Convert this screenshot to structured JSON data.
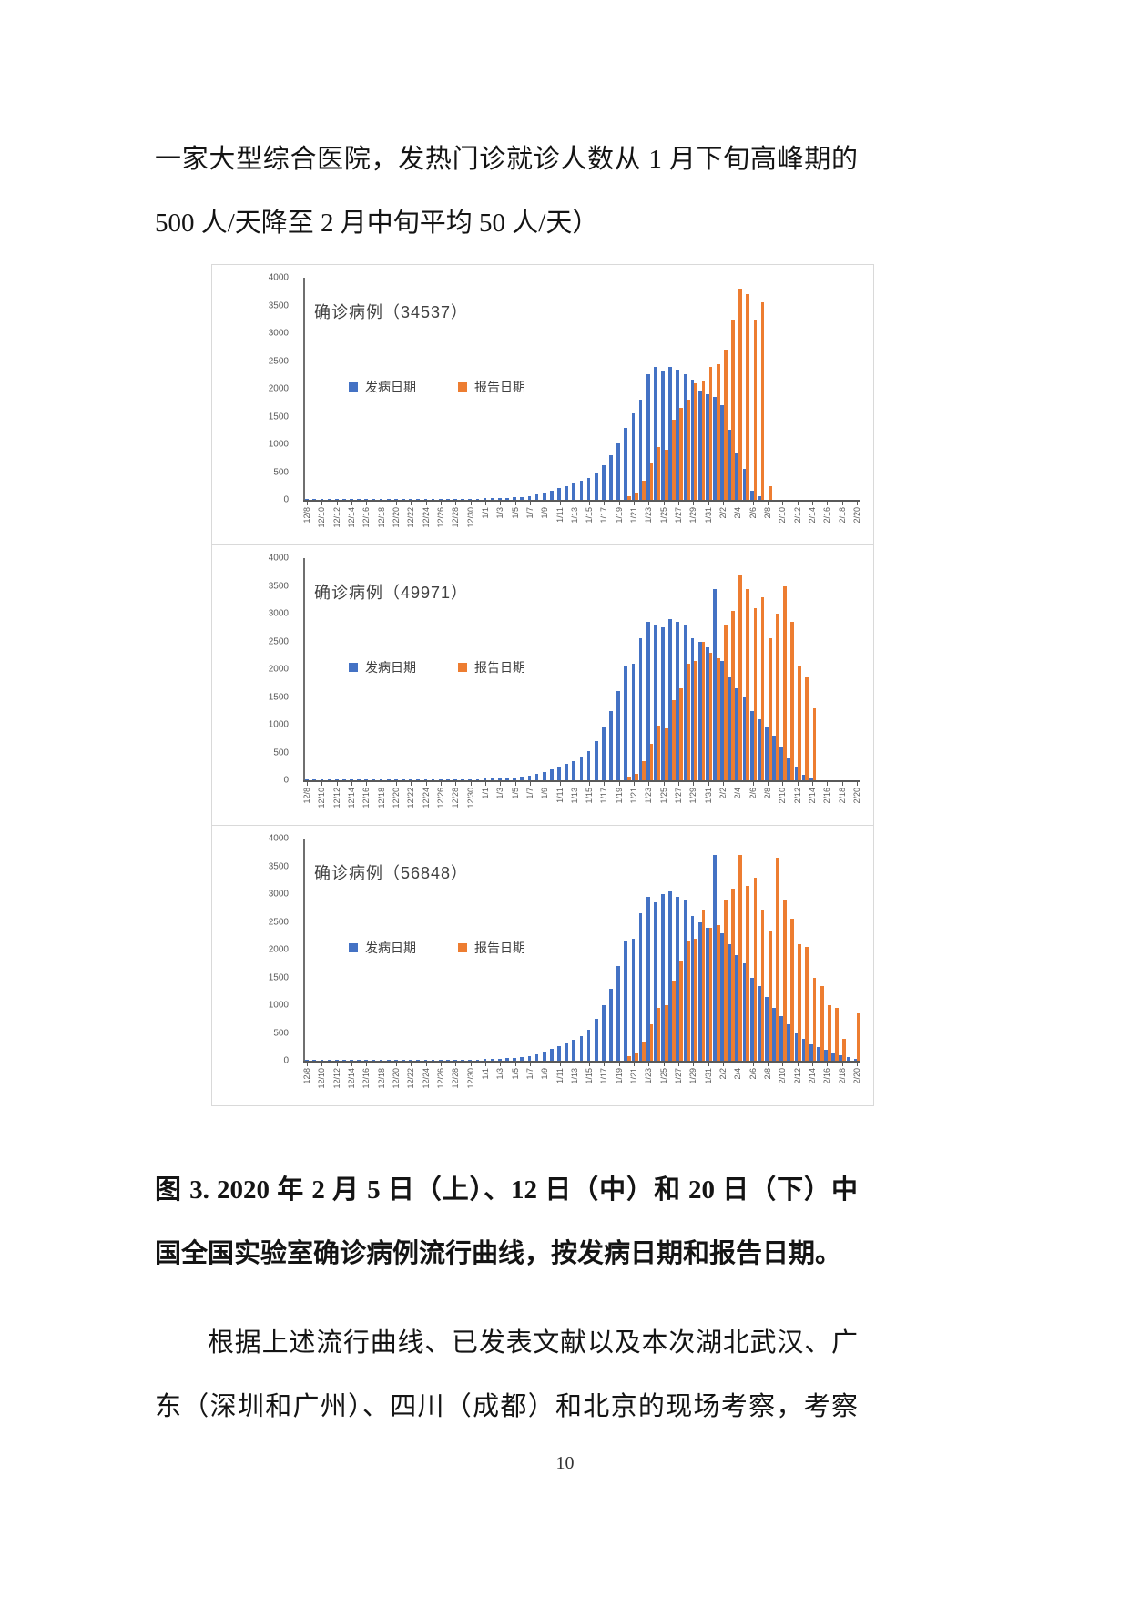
{
  "texts": {
    "paragraph_top": {
      "lines": [
        "一家大型综合医院，发热门诊就诊人数从 1 月下旬高峰期的",
        "500 人/天降至 2 月中旬平均 50 人/天）"
      ]
    },
    "figure_caption": {
      "lines": [
        "图 3. 2020 年 2 月 5 日（上）、12 日（中）和 20 日（下）中",
        "国全国实验室确诊病例流行曲线，按发病日期和报告日期。"
      ]
    },
    "paragraph_bottom": {
      "lines": [
        "根据上述流行曲线、已发表文献以及本次湖北武汉、广",
        "东（深圳和广州）、四川（成都）和北京的现场考察，考察"
      ]
    }
  },
  "page": {
    "number": "10"
  },
  "chart_data": {
    "type": "bar",
    "note": "Three stacked clustered-column epidemic curves, daily bars 12/8–2/20",
    "legend": {
      "onset_label": "发病日期",
      "report_label": "报告日期"
    },
    "colors": {
      "onset": "#4472C4",
      "report": "#ED7D31"
    },
    "ylim": [
      0,
      4000
    ],
    "y_ticks": [
      4000,
      3500,
      3000,
      2500,
      2000,
      1500,
      1000,
      500,
      0
    ],
    "tick_every": 2,
    "x": [
      "12/8",
      "12/9",
      "12/10",
      "12/11",
      "12/12",
      "12/13",
      "12/14",
      "12/15",
      "12/16",
      "12/17",
      "12/18",
      "12/19",
      "12/20",
      "12/21",
      "12/22",
      "12/23",
      "12/24",
      "12/25",
      "12/26",
      "12/27",
      "12/28",
      "12/29",
      "12/30",
      "12/31",
      "1/1",
      "1/2",
      "1/3",
      "1/4",
      "1/5",
      "1/6",
      "1/7",
      "1/8",
      "1/9",
      "1/10",
      "1/11",
      "1/12",
      "1/13",
      "1/14",
      "1/15",
      "1/16",
      "1/17",
      "1/18",
      "1/19",
      "1/20",
      "1/21",
      "1/22",
      "1/23",
      "1/24",
      "1/25",
      "1/26",
      "1/27",
      "1/28",
      "1/29",
      "1/30",
      "1/31",
      "2/1",
      "2/2",
      "2/3",
      "2/4",
      "2/5",
      "2/6",
      "2/7",
      "2/8",
      "2/9",
      "2/10",
      "2/11",
      "2/12",
      "2/13",
      "2/14",
      "2/15",
      "2/16",
      "2/17",
      "2/18",
      "2/19",
      "2/20"
    ],
    "charts": [
      {
        "title": "确诊病例（34537）",
        "total": 34537,
        "series": [
          {
            "name": "发病日期",
            "values": [
              15,
              5,
              10,
              5,
              10,
              5,
              10,
              10,
              15,
              10,
              10,
              15,
              10,
              15,
              15,
              10,
              15,
              10,
              15,
              15,
              20,
              15,
              20,
              20,
              30,
              25,
              35,
              40,
              45,
              55,
              70,
              95,
              130,
              170,
              210,
              250,
              290,
              340,
              400,
              500,
              620,
              800,
              1020,
              1300,
              1560,
              1800,
              2260,
              2400,
              2310,
              2400,
              2350,
              2260,
              2160,
              1960,
              1900,
              1850,
              1700,
              1260,
              860,
              560,
              160,
              60,
              0,
              0,
              0,
              0,
              0,
              0,
              0,
              0,
              0,
              0,
              0,
              0,
              0
            ]
          },
          {
            "name": "报告日期",
            "values": [
              0,
              0,
              0,
              0,
              0,
              0,
              0,
              0,
              0,
              0,
              0,
              0,
              0,
              0,
              0,
              0,
              0,
              0,
              0,
              0,
              0,
              0,
              0,
              0,
              0,
              0,
              0,
              0,
              0,
              0,
              0,
              0,
              0,
              0,
              0,
              0,
              0,
              0,
              0,
              0,
              0,
              0,
              0,
              60,
              120,
              350,
              650,
              950,
              900,
              1450,
              1650,
              1800,
              2100,
              2150,
              2400,
              2450,
              2700,
              3250,
              3800,
              3700,
              3250,
              3550,
              250,
              0,
              0,
              0,
              0,
              0,
              0,
              0,
              0,
              0,
              0,
              0,
              0
            ]
          }
        ]
      },
      {
        "title": "确诊病例（49971）",
        "total": 49971,
        "series": [
          {
            "name": "发病日期",
            "values": [
              15,
              5,
              10,
              5,
              10,
              5,
              10,
              10,
              15,
              10,
              10,
              15,
              10,
              15,
              15,
              10,
              15,
              10,
              15,
              15,
              20,
              15,
              20,
              20,
              30,
              30,
              35,
              40,
              50,
              60,
              80,
              110,
              150,
              200,
              250,
              300,
              350,
              420,
              520,
              700,
              950,
              1250,
              1600,
              2050,
              2100,
              2550,
              2850,
              2800,
              2750,
              2900,
              2850,
              2800,
              2550,
              2500,
              2400,
              3450,
              2150,
              1850,
              1650,
              1500,
              1250,
              1100,
              950,
              800,
              600,
              400,
              250,
              100,
              50,
              0,
              0,
              0,
              0,
              0,
              0
            ]
          },
          {
            "name": "报告日期",
            "values": [
              0,
              0,
              0,
              0,
              0,
              0,
              0,
              0,
              0,
              0,
              0,
              0,
              0,
              0,
              0,
              0,
              0,
              0,
              0,
              0,
              0,
              0,
              0,
              0,
              0,
              0,
              0,
              0,
              0,
              0,
              0,
              0,
              0,
              0,
              0,
              0,
              0,
              0,
              0,
              0,
              0,
              0,
              0,
              60,
              120,
              350,
              650,
              980,
              930,
              1450,
              1650,
              2100,
              2150,
              2500,
              2300,
              2200,
              2800,
              3050,
              3700,
              3450,
              3100,
              3300,
              2550,
              3000,
              3500,
              2850,
              2050,
              1850,
              1300,
              0,
              0,
              0,
              0,
              0,
              0
            ]
          }
        ]
      },
      {
        "title": "确诊病例（56848）",
        "total": 56848,
        "series": [
          {
            "name": "发病日期",
            "values": [
              15,
              5,
              10,
              5,
              10,
              5,
              10,
              10,
              15,
              10,
              10,
              15,
              10,
              15,
              15,
              10,
              15,
              10,
              15,
              15,
              20,
              15,
              20,
              20,
              30,
              30,
              35,
              45,
              55,
              65,
              85,
              115,
              160,
              210,
              260,
              310,
              370,
              450,
              560,
              750,
              1000,
              1300,
              1700,
              2150,
              2200,
              2650,
              2950,
              2850,
              3000,
              3050,
              2950,
              2900,
              2600,
              2500,
              2400,
              3700,
              2300,
              2100,
              1900,
              1750,
              1500,
              1350,
              1150,
              950,
              800,
              650,
              500,
              400,
              300,
              250,
              200,
              150,
              100,
              60,
              30
            ]
          },
          {
            "name": "报告日期",
            "values": [
              0,
              0,
              0,
              0,
              0,
              0,
              0,
              0,
              0,
              0,
              0,
              0,
              0,
              0,
              0,
              0,
              0,
              0,
              0,
              0,
              0,
              0,
              0,
              0,
              0,
              0,
              0,
              0,
              0,
              0,
              0,
              0,
              0,
              0,
              0,
              0,
              0,
              0,
              0,
              0,
              0,
              0,
              0,
              80,
              150,
              350,
              650,
              950,
              1000,
              1450,
              1800,
              2150,
              2200,
              2700,
              2400,
              2450,
              2900,
              3100,
              3700,
              3150,
              3300,
              2700,
              2350,
              3650,
              2900,
              2550,
              2100,
              2050,
              1500,
              1350,
              1000,
              950,
              400,
              0,
              850
            ]
          }
        ]
      }
    ]
  }
}
